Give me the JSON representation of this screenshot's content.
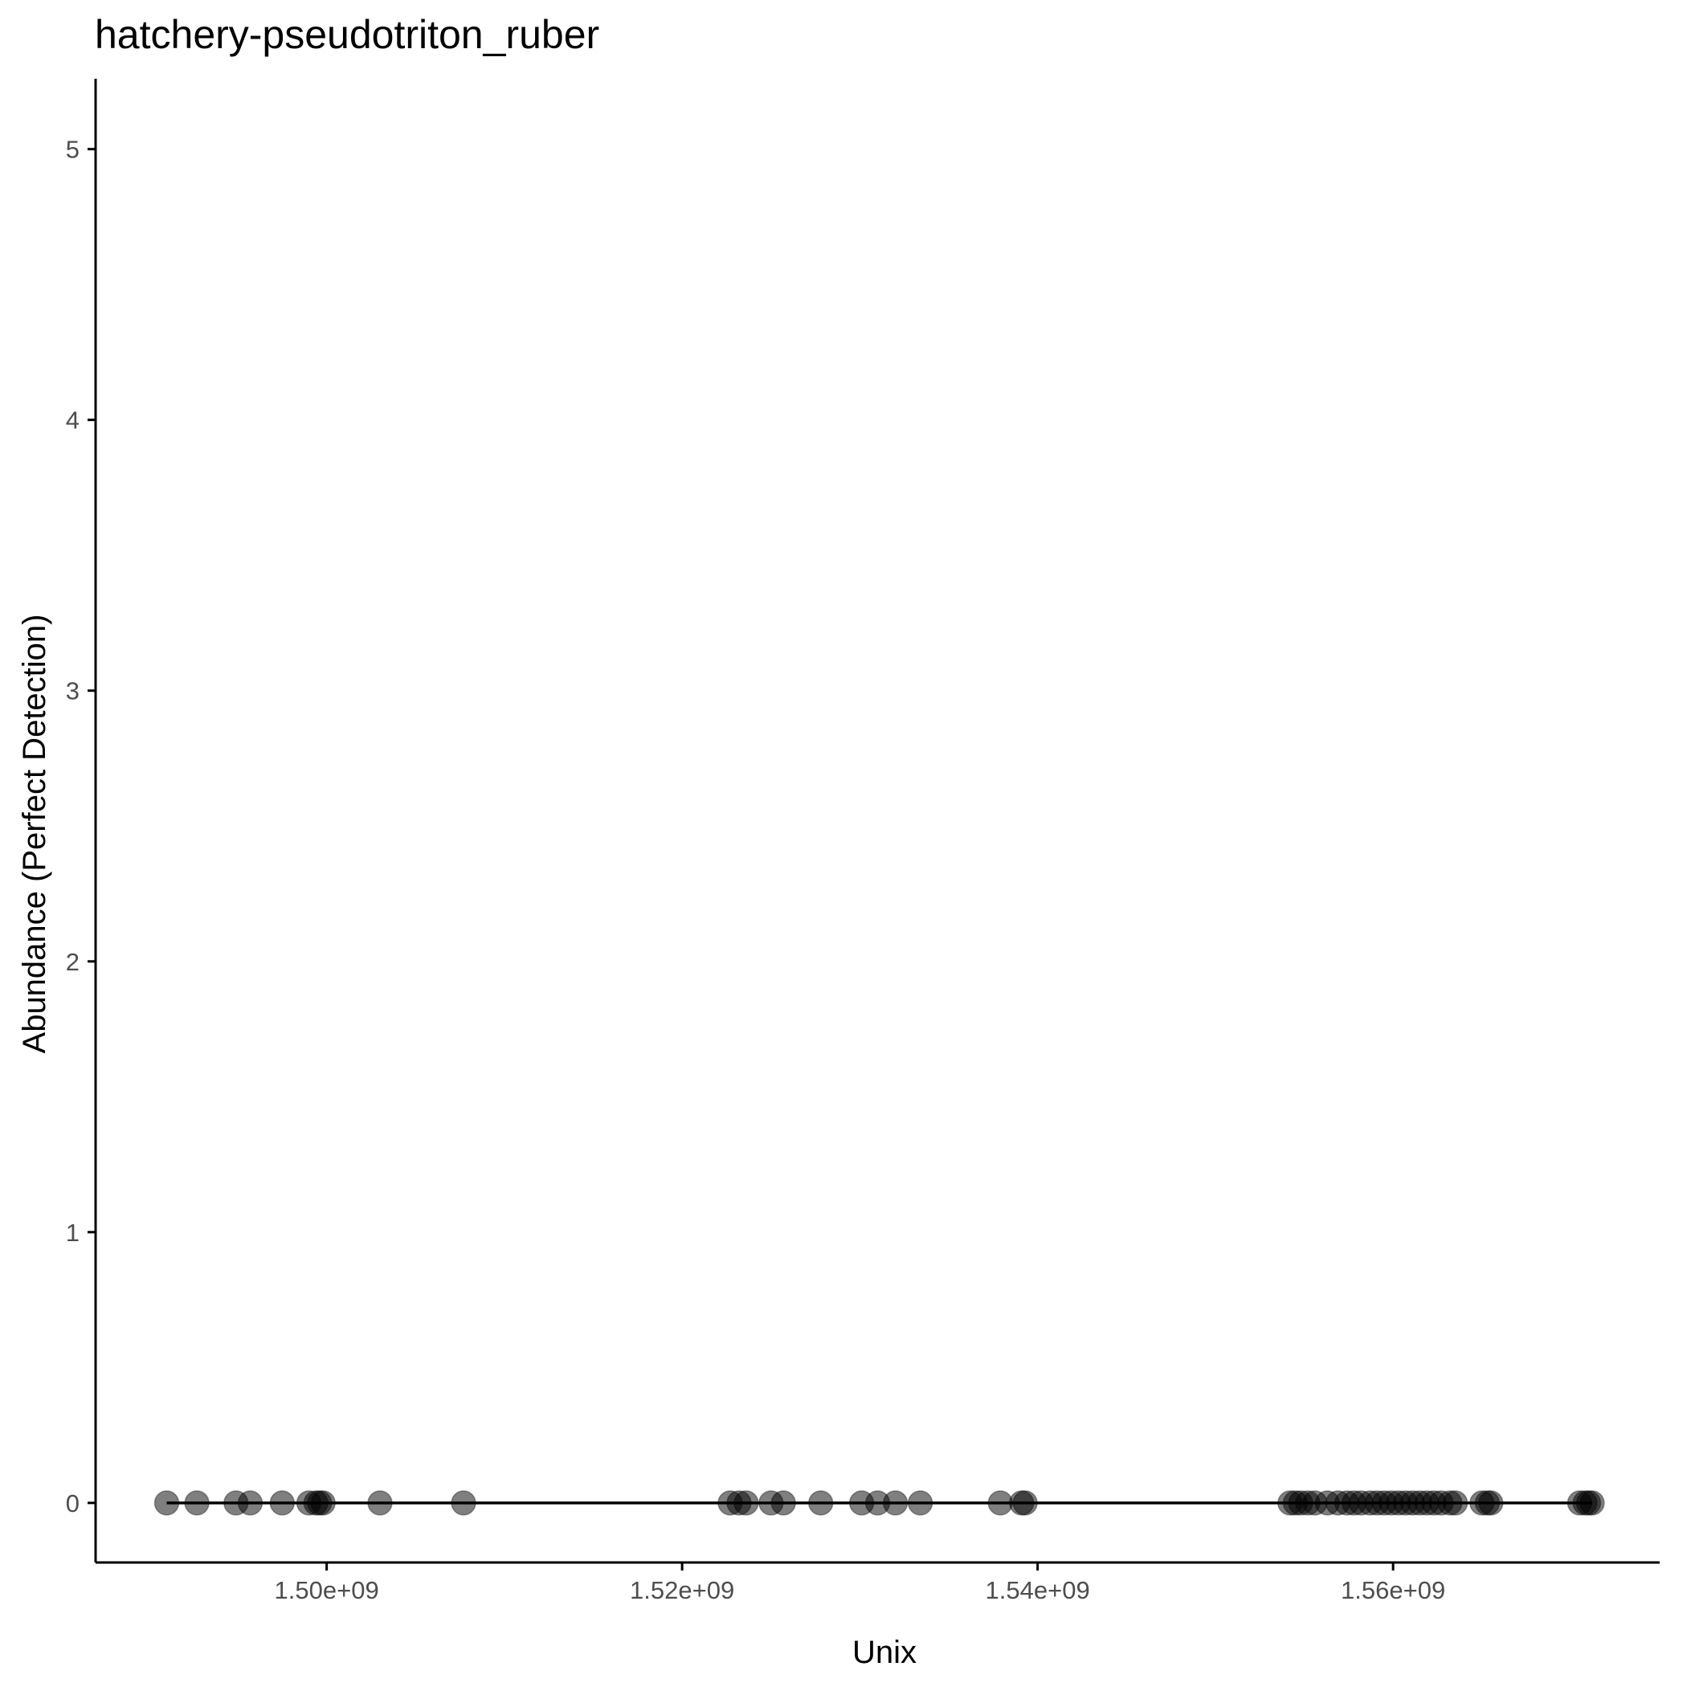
{
  "chart_data": {
    "type": "scatter",
    "title": "hatchery-pseudotriton_ruber",
    "xlabel": "Unix",
    "ylabel": "Abundance (Perfect Detection)",
    "xlim": [
      1487000000,
      1575000000
    ],
    "ylim": [
      -0.22,
      5.26
    ],
    "x_ticks": [
      {
        "value": 1500000000,
        "label": "1.50e+09"
      },
      {
        "value": 1520000000,
        "label": "1.52e+09"
      },
      {
        "value": 1540000000,
        "label": "1.54e+09"
      },
      {
        "value": 1560000000,
        "label": "1.56e+09"
      }
    ],
    "y_ticks": [
      {
        "value": 0,
        "label": "0"
      },
      {
        "value": 1,
        "label": "1"
      },
      {
        "value": 2,
        "label": "2"
      },
      {
        "value": 3,
        "label": "3"
      },
      {
        "value": 4,
        "label": "4"
      },
      {
        "value": 5,
        "label": "5"
      }
    ],
    "grid": false,
    "points": {
      "color": "#000000",
      "opacity": 0.5,
      "x": [
        1491000000,
        1492700000,
        1494900000,
        1495700000,
        1497500000,
        1499000000,
        1499400000,
        1499600000,
        1499800000,
        1503000000,
        1507700000,
        1522700000,
        1523200000,
        1523600000,
        1525000000,
        1525700000,
        1527800000,
        1530100000,
        1531000000,
        1532000000,
        1533400000,
        1537900000,
        1539100000,
        1539300000,
        1554200000,
        1554500000,
        1554800000,
        1555200000,
        1555600000,
        1556300000,
        1556900000,
        1557400000,
        1557800000,
        1558200000,
        1558700000,
        1559100000,
        1559500000,
        1559900000,
        1560300000,
        1560700000,
        1561100000,
        1561500000,
        1561900000,
        1562300000,
        1562700000,
        1563200000,
        1563500000,
        1565000000,
        1565300000,
        1565500000,
        1570500000,
        1570800000,
        1571000000,
        1571200000
      ],
      "y": [
        0,
        0,
        0,
        0,
        0,
        0,
        0,
        0,
        0,
        0,
        0,
        0,
        0,
        0,
        0,
        0,
        0,
        0,
        0,
        0,
        0,
        0,
        0,
        0,
        0,
        0,
        0,
        0,
        0,
        0,
        0,
        0,
        0,
        0,
        0,
        0,
        0,
        0,
        0,
        0,
        0,
        0,
        0,
        0,
        0,
        0,
        0,
        0,
        0,
        0,
        0,
        0,
        0,
        0
      ]
    },
    "line": {
      "color": "#000000",
      "x": [
        1491000000,
        1571200000
      ],
      "y": [
        0,
        0
      ]
    }
  }
}
